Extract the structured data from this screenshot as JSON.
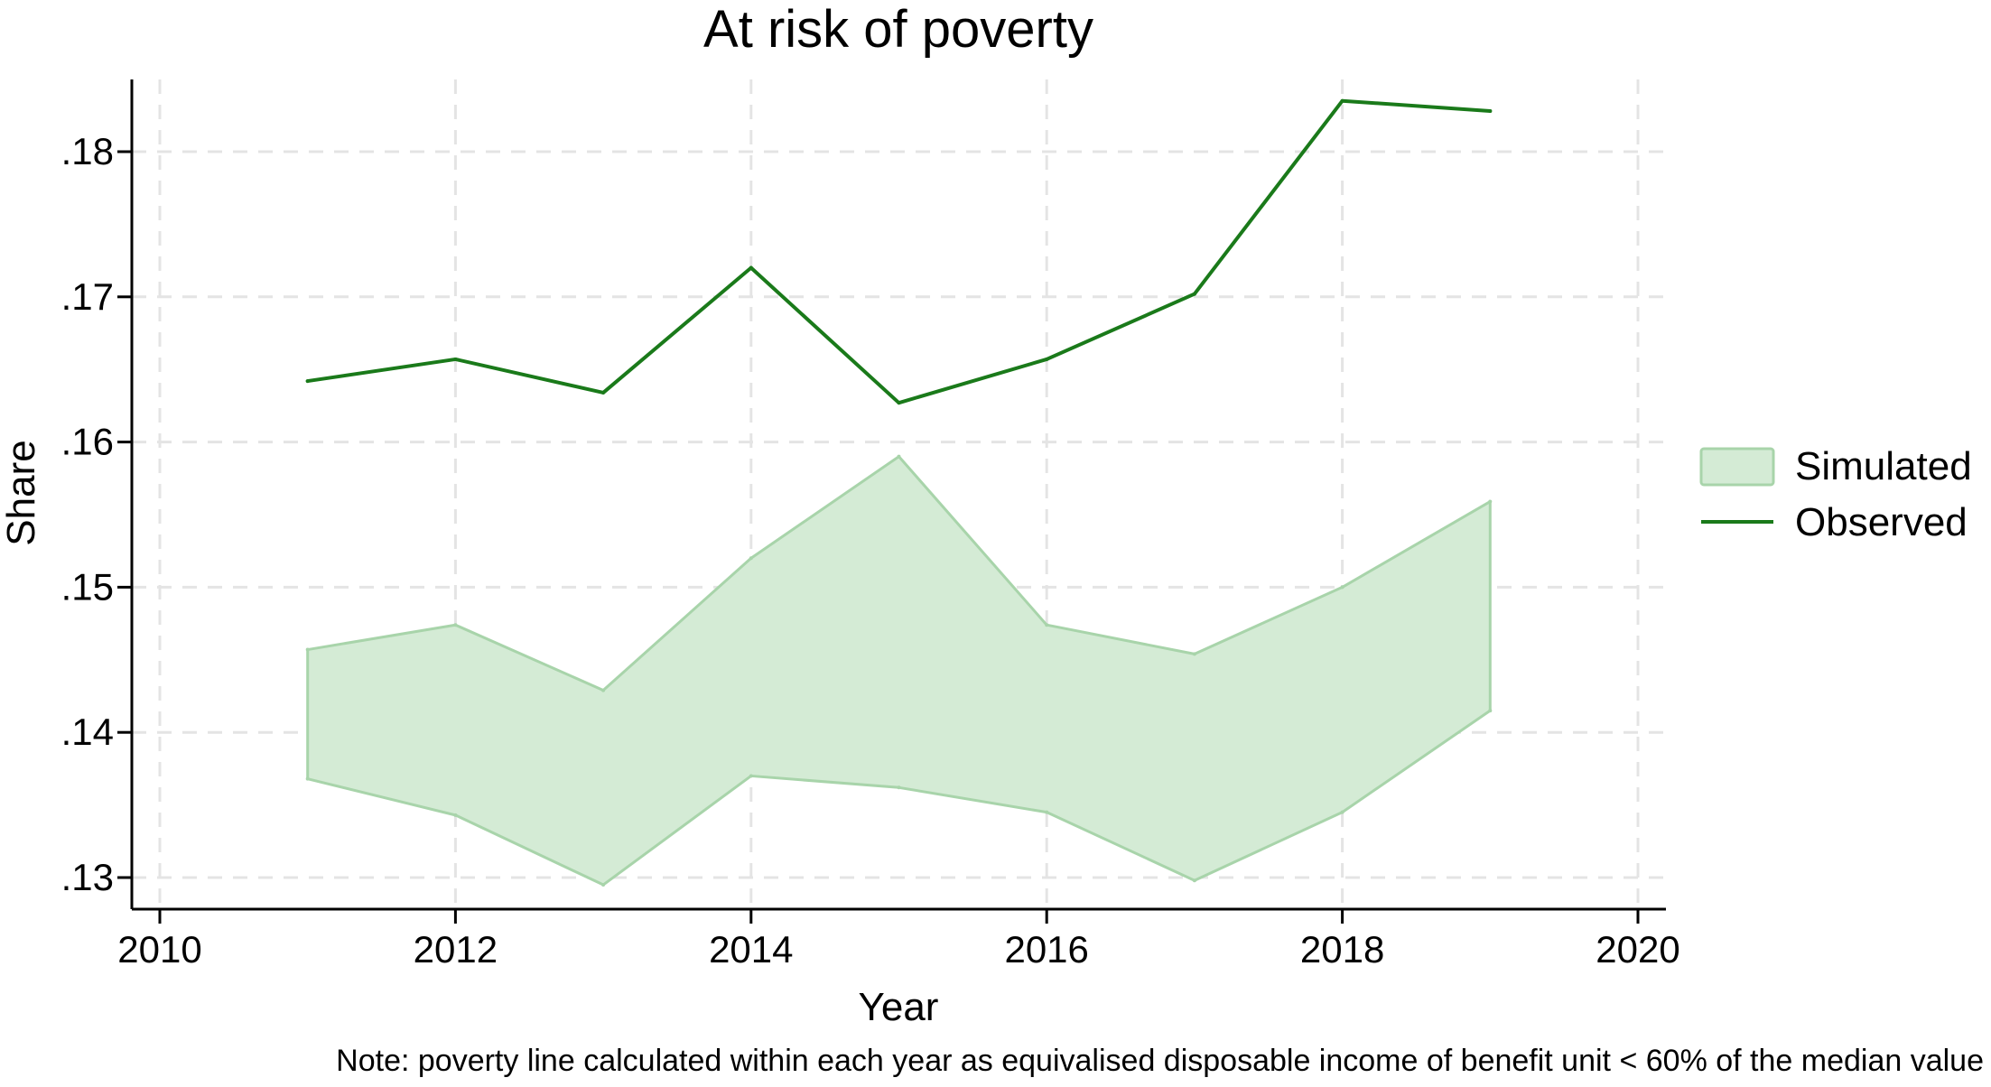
{
  "chart_data": {
    "type": "area",
    "title": "At risk of poverty",
    "xlabel": "Year",
    "ylabel": "Share",
    "note": "Note: poverty line calculated within each year as equivalised disposable income of benefit unit < 60% of the median value",
    "xlim": [
      2010,
      2020
    ],
    "ylim": [
      0.13,
      0.18
    ],
    "x_ticks": [
      2010,
      2012,
      2014,
      2016,
      2018,
      2020
    ],
    "x_tick_labels": [
      "2010",
      "2012",
      "2014",
      "2016",
      "2018",
      "2020"
    ],
    "y_ticks": [
      0.13,
      0.14,
      0.15,
      0.16,
      0.17,
      0.18
    ],
    "y_tick_labels": [
      ".13",
      ".14",
      ".15",
      ".16",
      ".17",
      ".18"
    ],
    "grid": true,
    "legend_position": "right",
    "series": [
      {
        "name": "Simulated",
        "kind": "band",
        "color": "#d4ebd5",
        "edge_color": "#a8d4aa",
        "x": [
          2011,
          2012,
          2013,
          2014,
          2015,
          2016,
          2017,
          2018,
          2019
        ],
        "lower": [
          0.1368,
          0.1343,
          0.1295,
          0.137,
          0.1362,
          0.1345,
          0.1298,
          0.1345,
          0.1415
        ],
        "upper": [
          0.1457,
          0.1474,
          0.1429,
          0.152,
          0.159,
          0.1474,
          0.1454,
          0.15,
          0.1559
        ]
      },
      {
        "name": "Observed",
        "kind": "line",
        "color": "#1a7a1a",
        "x": [
          2011,
          2012,
          2013,
          2014,
          2015,
          2016,
          2017,
          2018,
          2019
        ],
        "values": [
          0.1642,
          0.1657,
          0.1634,
          0.172,
          0.1627,
          0.1657,
          0.1702,
          0.1835,
          0.1828
        ]
      }
    ]
  }
}
